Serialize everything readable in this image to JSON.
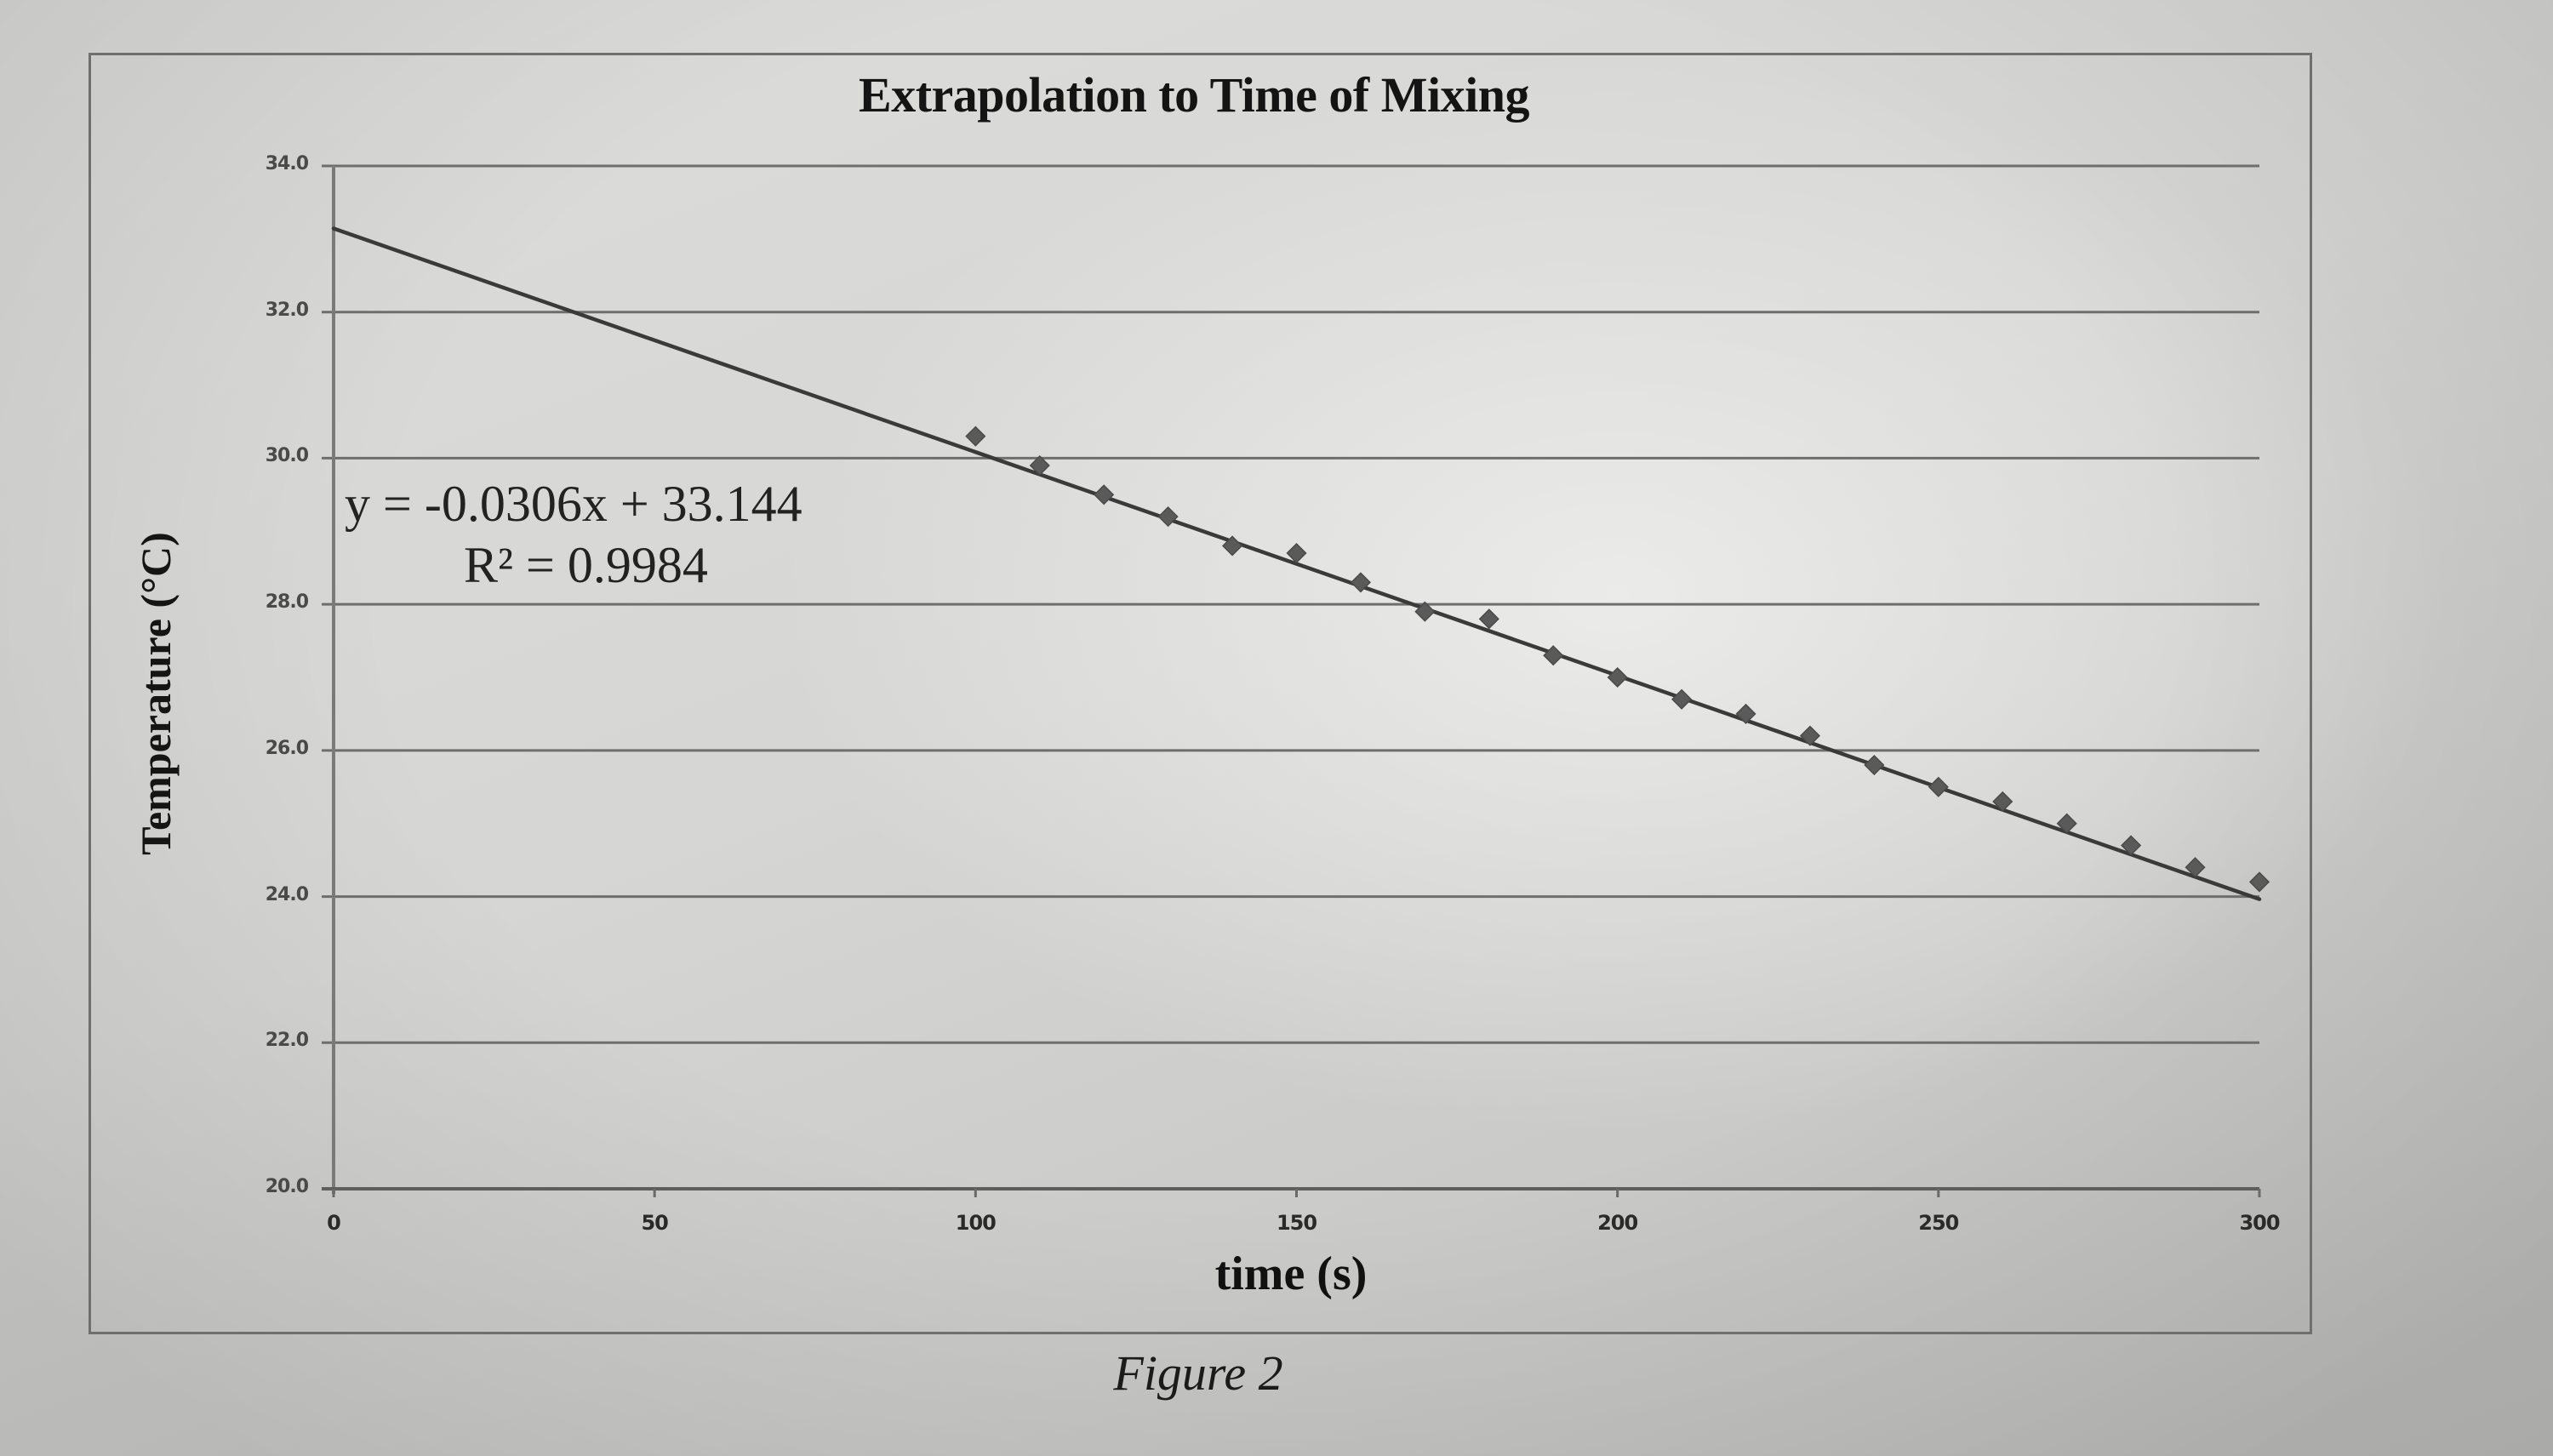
{
  "figure": {
    "caption": "Figure 2"
  },
  "chart_data": {
    "type": "scatter",
    "title": "Extrapolation to Time of Mixing",
    "xlabel": "time (s)",
    "ylabel": "Temperature (°C)",
    "xlim": [
      0,
      300
    ],
    "ylim": [
      20.0,
      34.0
    ],
    "x_ticks": [
      "0",
      "50",
      "100",
      "150",
      "200",
      "250",
      "300"
    ],
    "y_ticks": [
      "34.0",
      "32.0",
      "30.0",
      "28.0",
      "26.0",
      "24.0",
      "22.0",
      "20.0"
    ],
    "grid": "horizontal major gridlines",
    "legend": "none",
    "marker": "diamond",
    "series": [
      {
        "name": "Temperature",
        "x": [
          100,
          110,
          120,
          130,
          140,
          150,
          160,
          170,
          180,
          190,
          200,
          210,
          220,
          230,
          240,
          250,
          260,
          270,
          280,
          290,
          300
        ],
        "y": [
          30.3,
          29.9,
          29.5,
          29.2,
          28.8,
          28.7,
          28.3,
          27.9,
          27.8,
          27.3,
          27.0,
          26.7,
          26.5,
          26.2,
          25.8,
          25.5,
          25.3,
          25.0,
          24.7,
          24.4,
          24.2
        ]
      }
    ],
    "trendline": {
      "type": "linear",
      "slope": -0.0306,
      "intercept": 33.144,
      "x_range": [
        0,
        300
      ],
      "equation_label": "y = -0.0306x + 33.144",
      "r2_label": "R² = 0.9984"
    },
    "colors": {
      "marker": "#5a5a5a",
      "trendline": "#3a3a3a",
      "gridline": "#6e6e6e"
    }
  }
}
